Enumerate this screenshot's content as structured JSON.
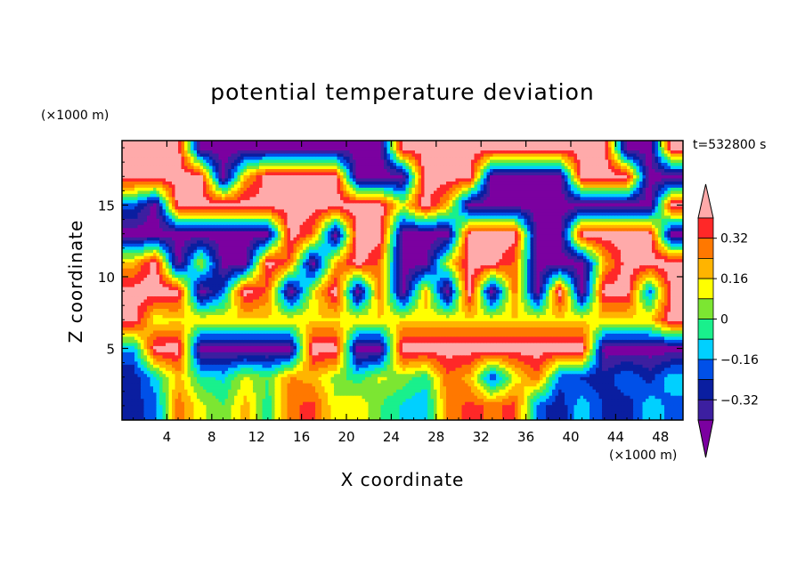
{
  "chart_data": {
    "type": "heatmap",
    "title": "potential temperature deviation",
    "xlabel": "X coordinate",
    "ylabel": "Z coordinate",
    "x_unit": "(×1000 m)",
    "y_unit": "(×1000 m)",
    "time_label": "t=532800 s",
    "xlim": [
      0,
      50
    ],
    "ylim": [
      0,
      19.5
    ],
    "x_ticks": [
      4,
      8,
      12,
      16,
      20,
      24,
      28,
      32,
      36,
      40,
      44,
      48
    ],
    "y_ticks": [
      5,
      10,
      15
    ],
    "colorbar": {
      "levels": [
        -0.4,
        -0.32,
        -0.24,
        -0.16,
        -0.08,
        0,
        0.08,
        0.16,
        0.24,
        0.32,
        0.4
      ],
      "tick_labels": [
        "0.32",
        "0.16",
        "0",
        "−0.16",
        "−0.32"
      ],
      "tick_values": [
        0.32,
        0.16,
        0,
        -0.16,
        -0.32
      ],
      "colors": [
        "#7b00a0",
        "#3c1fa0",
        "#0a1ea0",
        "#0050e8",
        "#00d0ff",
        "#19f08c",
        "#7ce632",
        "#ffff00",
        "#ffb400",
        "#ff7800",
        "#ff2828",
        "#ffaaaa"
      ],
      "extend": "both"
    },
    "field_description_grid": {
      "nx": 25,
      "nz": 10,
      "x_centers": [
        1,
        3,
        5,
        7,
        9,
        11,
        13,
        15,
        17,
        19,
        21,
        23,
        25,
        27,
        29,
        31,
        33,
        35,
        37,
        39,
        41,
        43,
        45,
        47,
        49
      ],
      "z_centers": [
        1,
        3,
        5,
        7,
        9,
        11,
        13,
        15,
        17,
        19
      ],
      "values": [
        [
          -0.28,
          -0.2,
          0.3,
          0.1,
          0.0,
          0.2,
          -0.05,
          0.3,
          0.35,
          0.1,
          0.15,
          0.0,
          -0.1,
          -0.15,
          0.25,
          0.35,
          0.3,
          0.35,
          -0.2,
          -0.3,
          -0.1,
          -0.25,
          -0.3,
          -0.1,
          -0.2
        ],
        [
          -0.3,
          -0.1,
          0.2,
          -0.05,
          -0.1,
          0.1,
          0.0,
          0.25,
          0.2,
          0.05,
          -0.05,
          0.1,
          0.05,
          -0.05,
          0.3,
          0.2,
          -0.25,
          0.1,
          0.3,
          -0.2,
          -0.25,
          -0.3,
          -0.15,
          -0.28,
          -0.1
        ],
        [
          -0.15,
          0.45,
          0.45,
          -0.45,
          -0.45,
          -0.45,
          -0.45,
          -0.45,
          0.45,
          0.45,
          -0.45,
          -0.45,
          0.45,
          0.45,
          0.45,
          0.45,
          0.45,
          0.45,
          0.45,
          0.45,
          0.45,
          -0.45,
          -0.45,
          -0.45,
          -0.45
        ],
        [
          0.45,
          0.1,
          0.15,
          0.15,
          0.15,
          0.15,
          0.15,
          0.15,
          0.15,
          0.15,
          0.15,
          0.15,
          0.15,
          0.15,
          0.15,
          0.15,
          0.15,
          0.15,
          0.15,
          0.15,
          0.15,
          0.15,
          0.15,
          0.15,
          0.45
        ],
        [
          0.45,
          0.45,
          0.45,
          -0.45,
          -0.2,
          0.45,
          0.3,
          -0.45,
          0.1,
          0.45,
          -0.45,
          0.3,
          -0.45,
          0.2,
          -0.45,
          0.45,
          -0.45,
          0.3,
          -0.45,
          0.45,
          -0.45,
          0.45,
          0.45,
          -0.2,
          0.45
        ],
        [
          0.2,
          0.45,
          -0.45,
          0.1,
          -0.45,
          -0.45,
          0.45,
          0.3,
          -0.45,
          0.2,
          0.45,
          0.3,
          -0.45,
          -0.45,
          0.1,
          0.45,
          0.45,
          0.3,
          -0.45,
          -0.45,
          -0.45,
          0.2,
          0.45,
          0.45,
          0.45
        ],
        [
          -0.45,
          -0.45,
          -0.45,
          -0.45,
          -0.45,
          -0.45,
          -0.45,
          0.45,
          0.3,
          -0.45,
          0.45,
          0.45,
          -0.45,
          -0.45,
          -0.45,
          0.45,
          0.45,
          0.45,
          -0.45,
          -0.45,
          0.45,
          0.45,
          0.45,
          0.45,
          -0.45
        ],
        [
          -0.2,
          -0.45,
          0.45,
          0.45,
          0.45,
          0.45,
          0.45,
          0.45,
          0.45,
          0.45,
          0.45,
          0.45,
          0.1,
          0.45,
          0.2,
          -0.45,
          -0.45,
          -0.45,
          -0.45,
          -0.45,
          -0.45,
          -0.45,
          -0.45,
          -0.45,
          0.45
        ],
        [
          0.45,
          0.45,
          0.45,
          0.45,
          -0.45,
          0.2,
          0.45,
          0.45,
          0.45,
          0.45,
          -0.45,
          -0.45,
          -0.45,
          0.45,
          0.45,
          0.45,
          -0.45,
          -0.45,
          -0.45,
          -0.45,
          0.45,
          0.45,
          0.45,
          -0.45,
          -0.45
        ],
        [
          0.45,
          0.45,
          0.45,
          -0.45,
          -0.45,
          -0.45,
          -0.45,
          -0.45,
          -0.45,
          -0.45,
          -0.45,
          -0.45,
          0.45,
          0.45,
          0.45,
          0.45,
          0.45,
          0.45,
          0.45,
          0.45,
          0.45,
          0.45,
          -0.45,
          -0.45,
          0.45
        ]
      ]
    }
  }
}
